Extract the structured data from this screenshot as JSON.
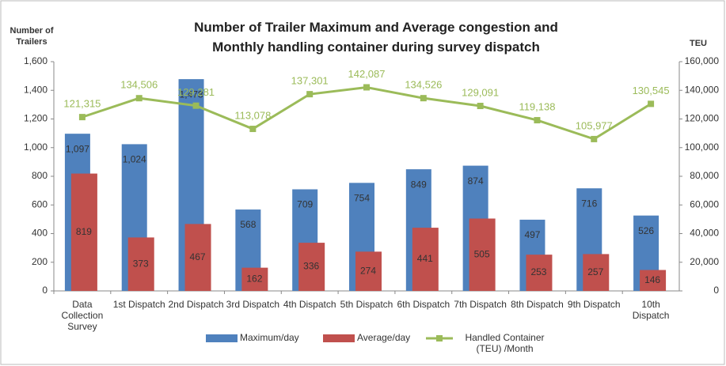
{
  "chart_data": {
    "type": "bar_line",
    "title": "Number of Trailer Maximum and Average congestion and Monthly handling container during survey dispatch",
    "y_label": "Number of Trailers",
    "y2_label": "TEU",
    "categories": [
      "Data Collection Survey",
      "1st Dispatch",
      "2nd Dispatch",
      "3rd Dispatch",
      "4th Dispatch",
      "5th Dispatch",
      "6th Dispatch",
      "7th Dispatch",
      "8th Dispatch",
      "9th Dispatch",
      "10th Dispatch"
    ],
    "series": [
      {
        "name": "Maximum/day",
        "color": "#4f81bd",
        "values": [
          1097,
          1024,
          1478,
          568,
          709,
          754,
          849,
          874,
          497,
          716,
          526
        ],
        "value_labels": [
          "1,097",
          "1,024",
          "1,478",
          "568",
          "709",
          "754",
          "849",
          "874",
          "497",
          "716",
          "526"
        ]
      },
      {
        "name": "Average/day",
        "color": "#c0504d",
        "values": [
          819,
          373,
          467,
          162,
          336,
          274,
          441,
          505,
          253,
          257,
          146
        ]
      },
      {
        "name": "Handled Container (TEU) /Month",
        "color": "#9bbb59",
        "axis": "y2",
        "values": [
          121315,
          134506,
          129281,
          113078,
          137301,
          142087,
          134526,
          129091,
          119138,
          105977,
          130545
        ],
        "value_labels": [
          "121,315",
          "134,506",
          "129,281",
          "113,078",
          "137,301",
          "142,087",
          "134,526",
          "129,091",
          "119,138",
          "105,977",
          "130,545"
        ]
      }
    ],
    "ylim": [
      0,
      1600
    ],
    "yticks": [
      0,
      200,
      400,
      600,
      800,
      {
        "value": 1000,
        "label": "1,000"
      },
      {
        "value": 1200,
        "label": "1,200"
      },
      {
        "value": 1400,
        "label": "1,400"
      },
      {
        "value": 1600,
        "label": "1,600"
      }
    ],
    "y2lim": [
      0,
      160000
    ],
    "y2ticks": [
      0,
      {
        "value": 20000,
        "label": "20,000"
      },
      {
        "value": 40000,
        "label": "40,000"
      },
      {
        "value": 60000,
        "label": "60,000"
      },
      {
        "value": 80000,
        "label": "80,000"
      },
      {
        "value": 100000,
        "label": "100,000"
      },
      {
        "value": 120000,
        "label": "120,000"
      },
      {
        "value": 140000,
        "label": "140,000"
      },
      {
        "value": 160000,
        "label": "160,000"
      }
    ],
    "legend": "bottom"
  }
}
